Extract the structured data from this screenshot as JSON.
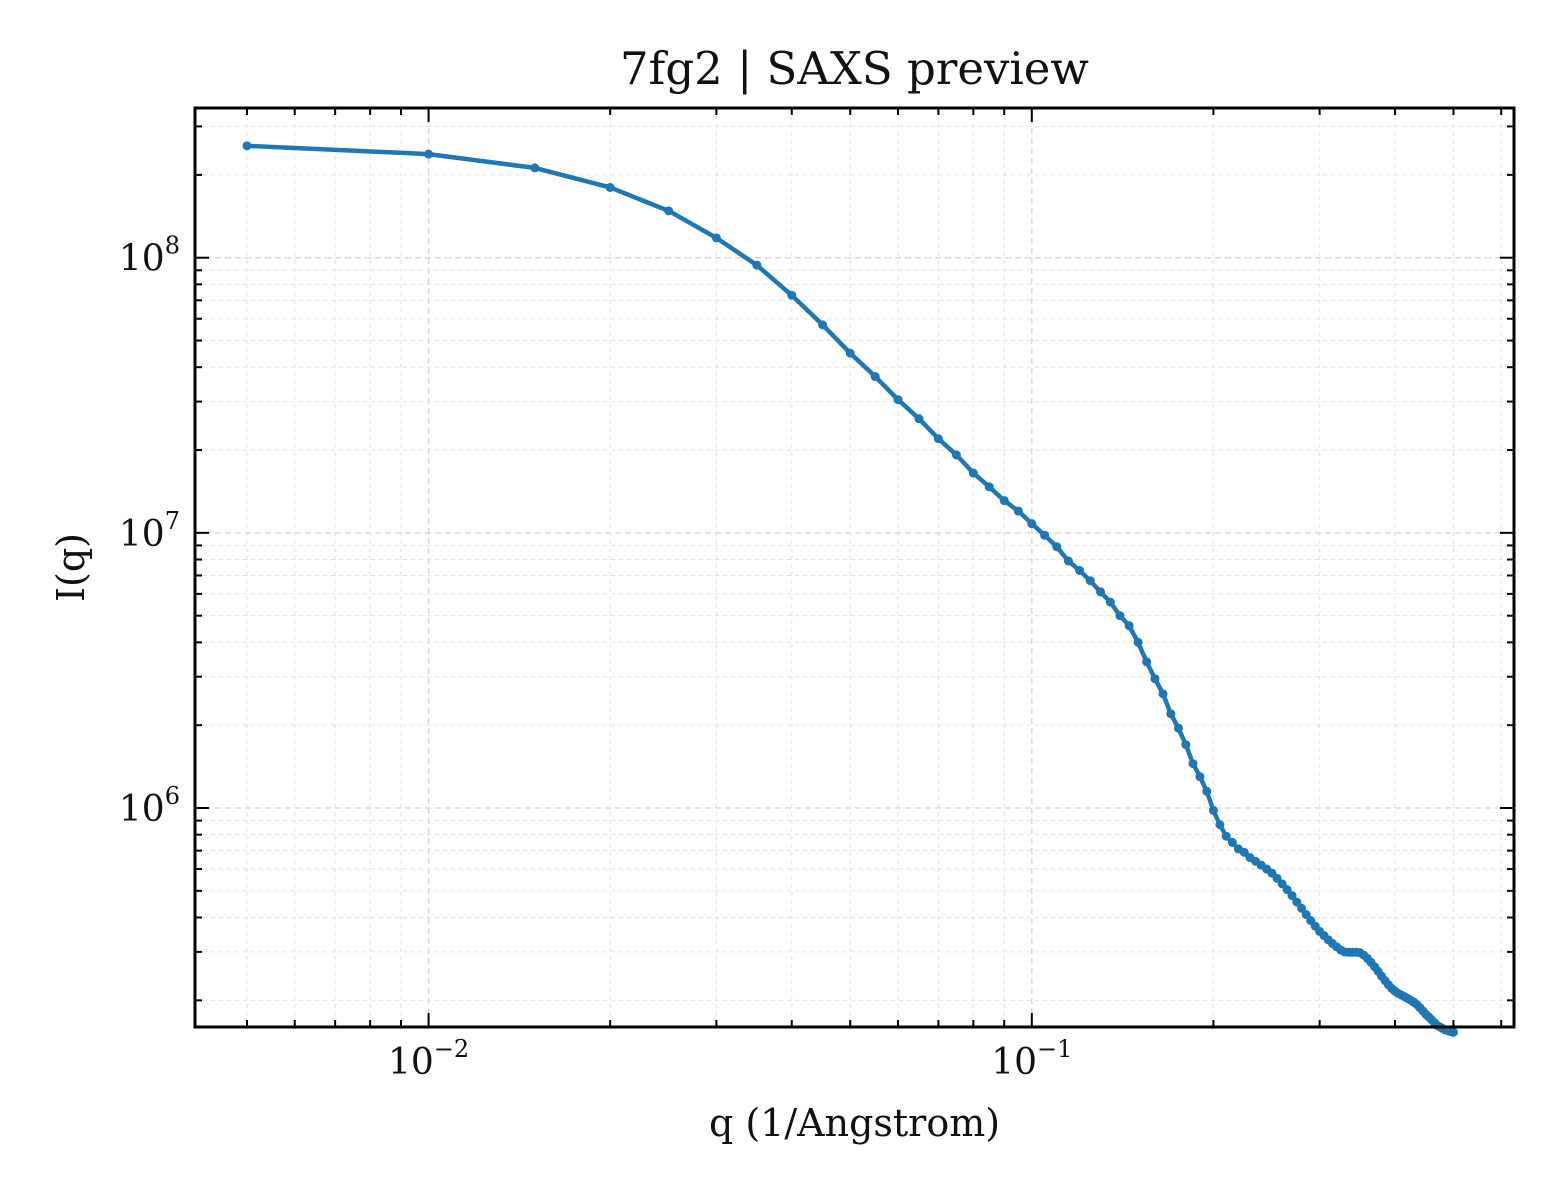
{
  "chart_data": {
    "type": "line",
    "title": "7fg2 | SAXS preview",
    "xlabel": "q (1/Angstrom)",
    "ylabel": "I(q)",
    "xscale": "log",
    "yscale": "log",
    "xlim": [
      0.0041,
      0.63
    ],
    "ylim": [
      160000,
      350000000
    ],
    "grid": true,
    "x_ticks": [
      {
        "value": 0.01,
        "base": "10",
        "exp": "−2"
      },
      {
        "value": 0.1,
        "base": "10",
        "exp": "−1"
      }
    ],
    "y_ticks": [
      {
        "value": 1000000,
        "base": "10",
        "exp": "6"
      },
      {
        "value": 10000000,
        "base": "10",
        "exp": "7"
      },
      {
        "value": 100000000,
        "base": "10",
        "exp": "8"
      }
    ],
    "series": [
      {
        "color": "#1f77b4",
        "x": [
          0.005,
          0.01,
          0.015,
          0.02,
          0.025,
          0.03,
          0.035,
          0.04,
          0.045,
          0.05,
          0.055,
          0.06,
          0.065,
          0.07,
          0.075,
          0.08,
          0.085,
          0.09,
          0.095,
          0.1,
          0.105,
          0.11,
          0.115,
          0.12,
          0.125,
          0.13,
          0.135,
          0.14,
          0.145,
          0.15,
          0.155,
          0.16,
          0.165,
          0.17,
          0.175,
          0.18,
          0.185,
          0.19,
          0.195,
          0.2,
          0.205,
          0.21,
          0.215,
          0.22,
          0.225,
          0.23,
          0.235,
          0.24,
          0.245,
          0.25,
          0.255,
          0.26,
          0.265,
          0.27,
          0.275,
          0.28,
          0.285,
          0.29,
          0.295,
          0.3,
          0.305,
          0.31,
          0.315,
          0.32,
          0.325,
          0.33,
          0.335,
          0.34,
          0.345,
          0.35,
          0.355,
          0.36,
          0.365,
          0.37,
          0.375,
          0.38,
          0.385,
          0.39,
          0.395,
          0.4,
          0.405,
          0.41,
          0.415,
          0.42,
          0.425,
          0.43,
          0.435,
          0.44,
          0.445,
          0.45,
          0.455,
          0.46,
          0.465,
          0.47,
          0.475,
          0.48,
          0.485,
          0.49,
          0.495,
          0.5
        ],
        "y": [
          255000000,
          238000000,
          212000000,
          180000000,
          148000000,
          118000000,
          94000000,
          73000000,
          57000000,
          45000000,
          37000000,
          30500000,
          26000000,
          22000000,
          19200000,
          16500000,
          14700000,
          13100000,
          12000000,
          10800000,
          9800000,
          8900000,
          7900000,
          7300000,
          6700000,
          6100000,
          5600000,
          5000000,
          4600000,
          4000000,
          3400000,
          2950000,
          2600000,
          2200000,
          1950000,
          1700000,
          1450000,
          1300000,
          1150000,
          980000,
          870000,
          790000,
          750000,
          710000,
          690000,
          660000,
          640000,
          620000,
          600000,
          580000,
          555000,
          530000,
          505000,
          480000,
          455000,
          432000,
          410000,
          390000,
          372000,
          356000,
          344000,
          332000,
          322000,
          313000,
          305000,
          300000,
          299000,
          299000,
          299000,
          298000,
          292000,
          284000,
          275000,
          265000,
          255000,
          245000,
          236000,
          228000,
          221000,
          216000,
          212000,
          209000,
          206000,
          203000,
          200000,
          197000,
          193000,
          188000,
          183000,
          178000,
          174000,
          170000,
          166000,
          162000,
          160000,
          158000,
          156000,
          155000,
          154000,
          153000
        ]
      }
    ]
  }
}
